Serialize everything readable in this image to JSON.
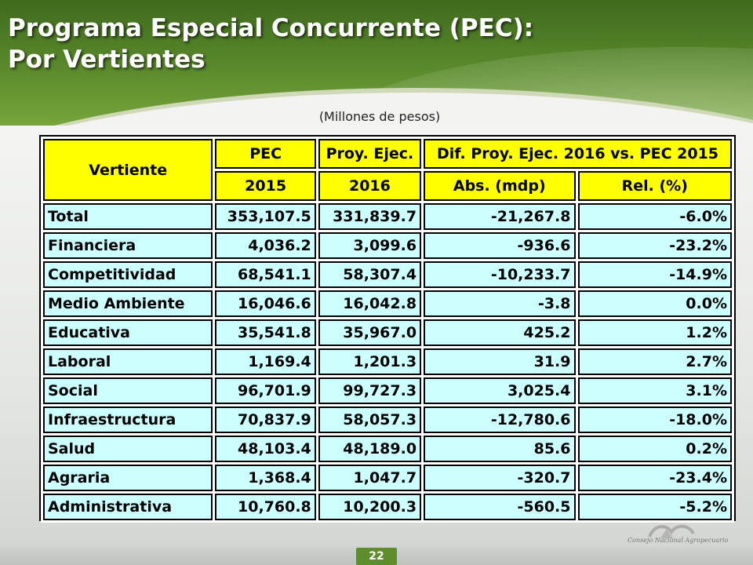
{
  "slide": {
    "title_line1": "Programa Especial Concurrente (PEC):",
    "title_line2": "Por Vertientes",
    "subtitle": "(Millones de pesos)",
    "page_number": "22",
    "logo_caption": "Consejo Nacional Agropecuario"
  },
  "table": {
    "headers": {
      "vertiente": "Vertiente",
      "pec": "PEC",
      "pec_year": "2015",
      "proy": "Proy. Ejec.",
      "proy_year": "2016",
      "dif": "Dif. Proy. Ejec. 2016 vs. PEC 2015",
      "abs": "Abs. (mdp)",
      "rel": "Rel. (%)"
    },
    "rows": [
      {
        "name": "Total",
        "pec2015": "353,107.5",
        "proy2016": "331,839.7",
        "abs": "-21,267.8",
        "rel": "-6.0%"
      },
      {
        "name": "Financiera",
        "pec2015": "4,036.2",
        "proy2016": "3,099.6",
        "abs": "-936.6",
        "rel": "-23.2%"
      },
      {
        "name": "Competitividad",
        "pec2015": "68,541.1",
        "proy2016": "58,307.4",
        "abs": "-10,233.7",
        "rel": "-14.9%"
      },
      {
        "name": "Medio Ambiente",
        "pec2015": "16,046.6",
        "proy2016": "16,042.8",
        "abs": "-3.8",
        "rel": "0.0%"
      },
      {
        "name": "Educativa",
        "pec2015": "35,541.8",
        "proy2016": "35,967.0",
        "abs": "425.2",
        "rel": "1.2%"
      },
      {
        "name": "Laboral",
        "pec2015": "1,169.4",
        "proy2016": "1,201.3",
        "abs": "31.9",
        "rel": "2.7%"
      },
      {
        "name": "Social",
        "pec2015": "96,701.9",
        "proy2016": "99,727.3",
        "abs": "3,025.4",
        "rel": "3.1%"
      },
      {
        "name": "Infraestructura",
        "pec2015": "70,837.9",
        "proy2016": "58,057.3",
        "abs": "-12,780.6",
        "rel": "-18.0%"
      },
      {
        "name": "Salud",
        "pec2015": "48,103.4",
        "proy2016": "48,189.0",
        "abs": "85.6",
        "rel": "0.2%"
      },
      {
        "name": "Agraria",
        "pec2015": "1,368.4",
        "proy2016": "1,047.7",
        "abs": "-320.7",
        "rel": "-23.4%"
      },
      {
        "name": "Administrativa",
        "pec2015": "10,760.8",
        "proy2016": "10,200.3",
        "abs": "-560.5",
        "rel": "-5.2%"
      }
    ]
  },
  "colors": {
    "header_green": "#5a8a2b",
    "header_cell_yellow": "#ffff00",
    "body_cell_cyan": "#ccffff"
  }
}
